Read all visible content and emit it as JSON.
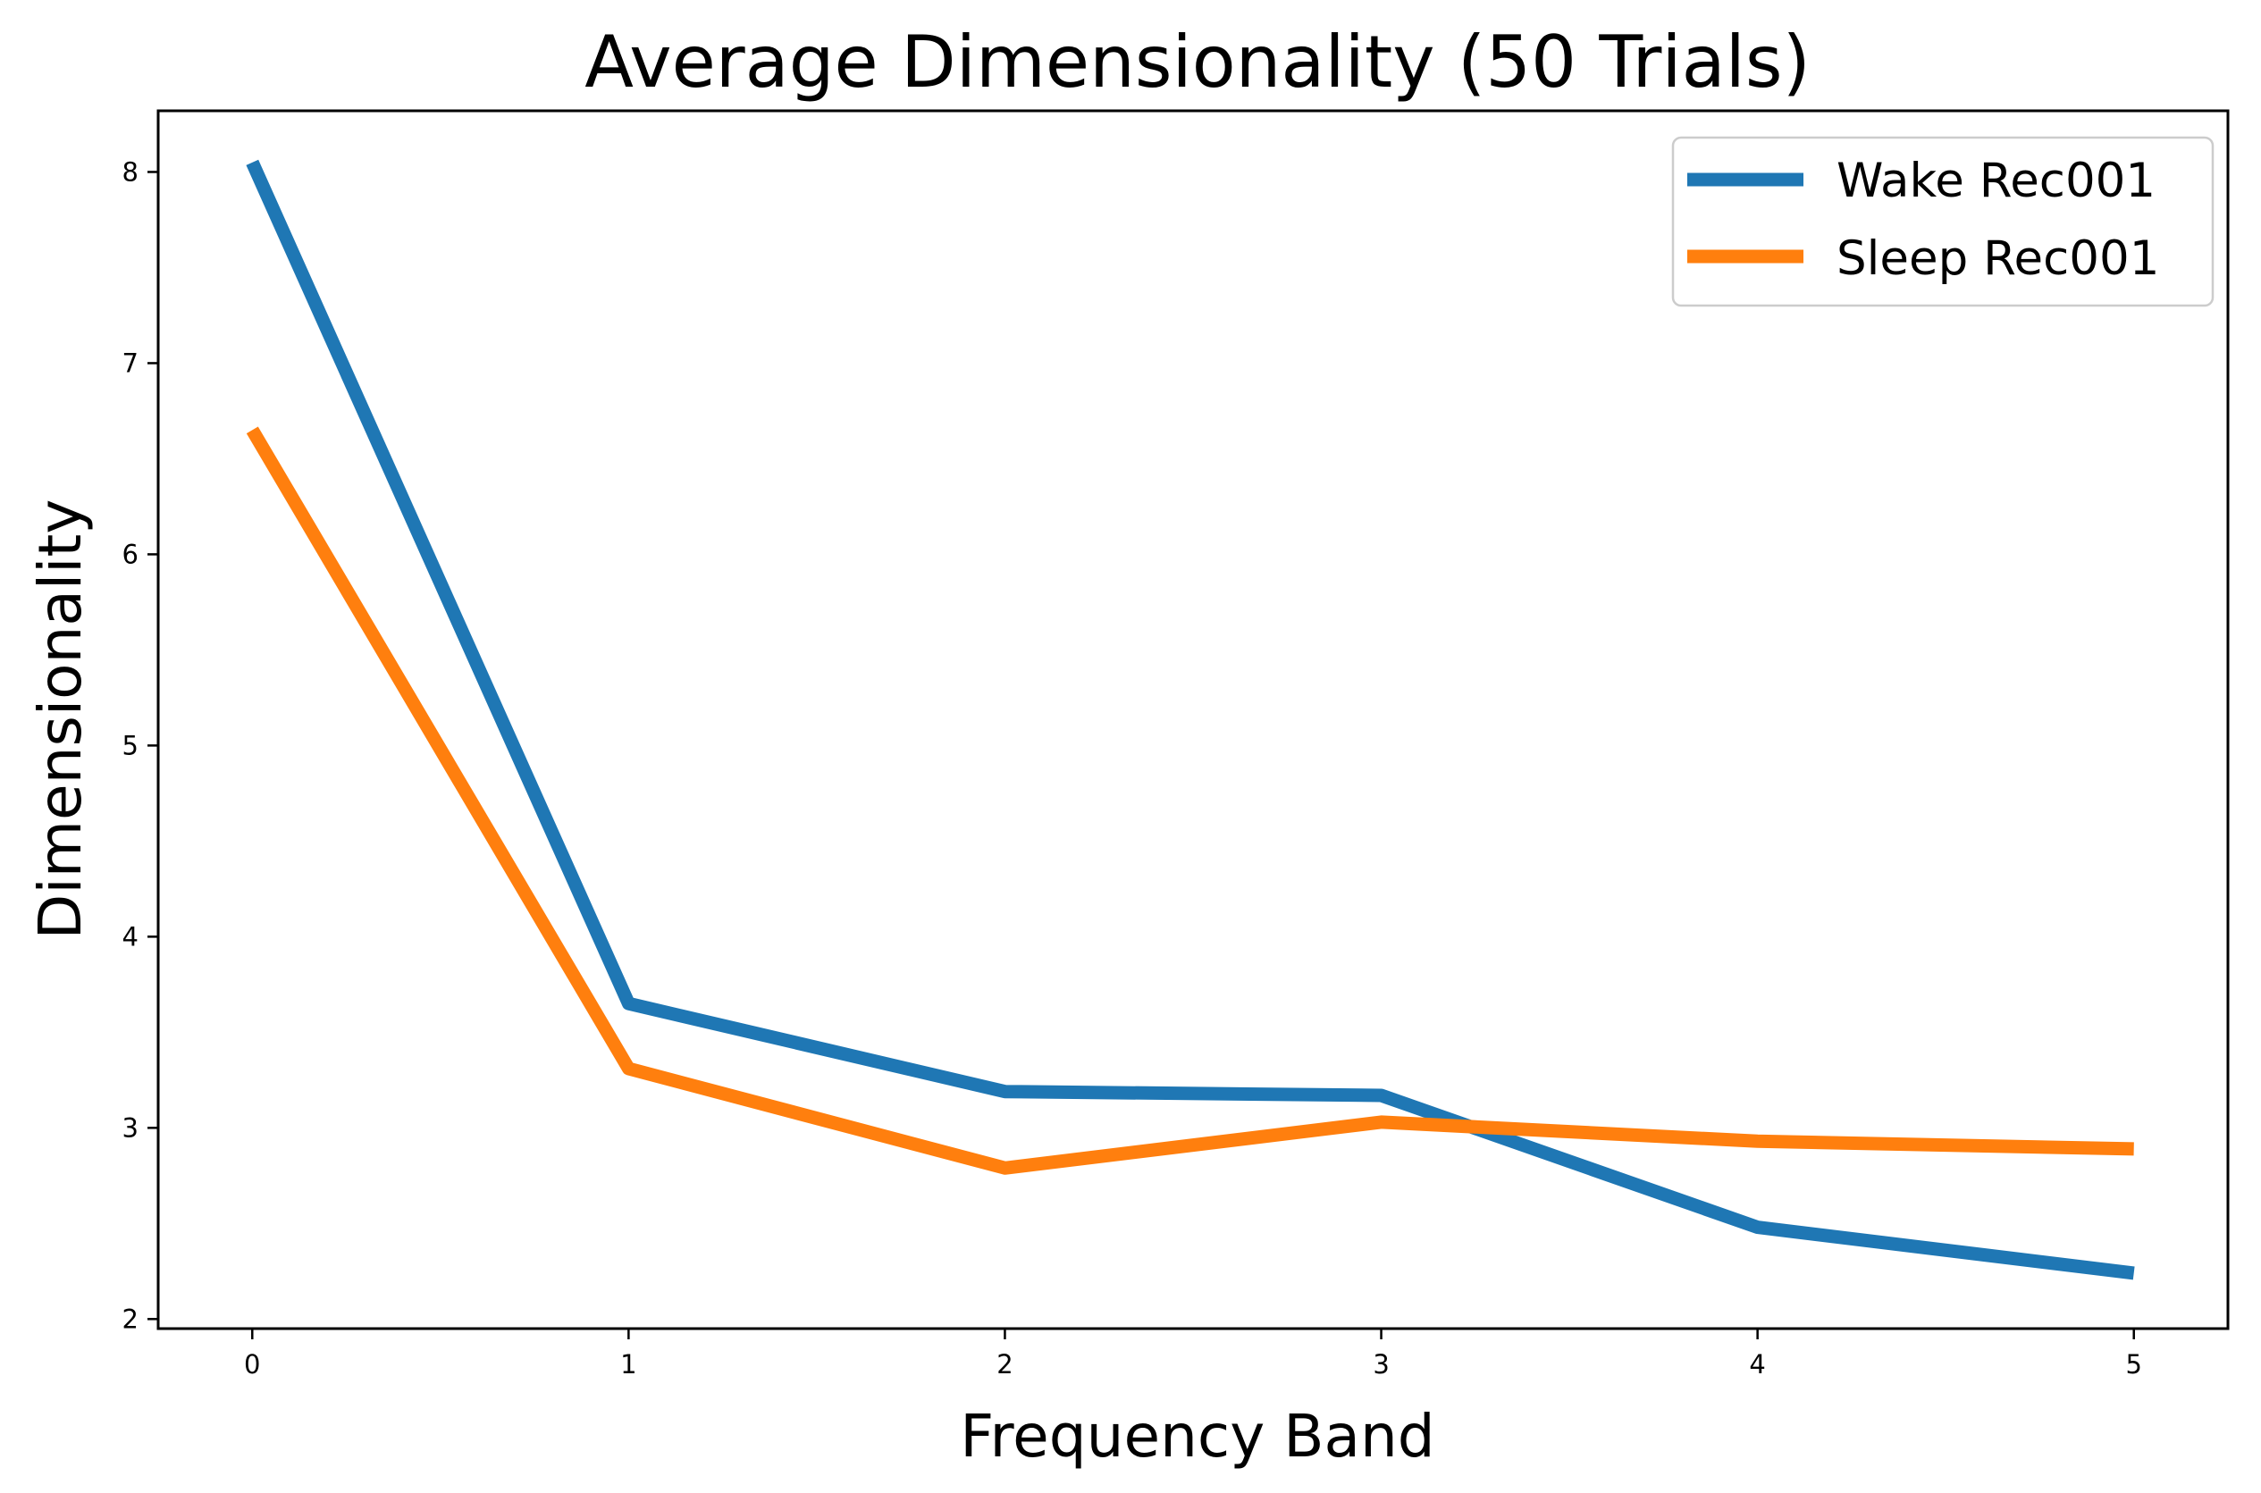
{
  "chart_data": {
    "type": "line",
    "title": "Average Dimensionality (50 Trials)",
    "xlabel": "Frequency Band",
    "ylabel": "Dimensionality",
    "x": [
      0,
      1,
      2,
      3,
      4,
      5
    ],
    "xticks": [
      "0",
      "1",
      "2",
      "3",
      "4",
      "5"
    ],
    "yticks": [
      "2",
      "3",
      "4",
      "5",
      "6",
      "7",
      "8"
    ],
    "xlim": [
      -0.25,
      5.25
    ],
    "ylim": [
      1.95,
      8.32
    ],
    "grid": false,
    "legend_position": "top-right",
    "series": [
      {
        "name": "Wake Rec001",
        "color": "#1f77b4",
        "values": [
          8.05,
          3.65,
          3.19,
          3.17,
          2.48,
          2.24
        ]
      },
      {
        "name": "Sleep Rec001",
        "color": "#ff7f0e",
        "values": [
          6.65,
          3.31,
          2.79,
          3.03,
          2.93,
          2.89
        ]
      }
    ]
  }
}
